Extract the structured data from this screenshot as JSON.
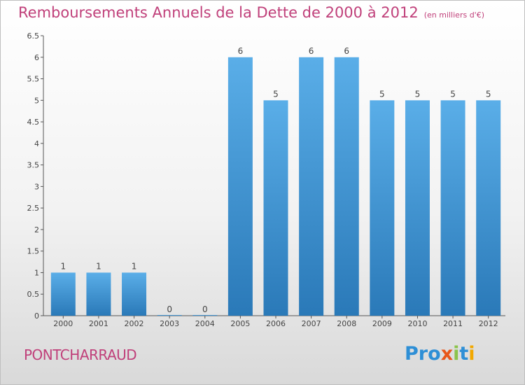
{
  "title": "Remboursements Annuels de la Dette de 2000 à 2012",
  "unit": "(en milliers d'€)",
  "commune": "PONTCHARRAUD",
  "logo": {
    "text": "Proxiti",
    "letters": [
      "P",
      "r",
      "o",
      "x",
      "i",
      "t",
      "i"
    ],
    "colors": [
      "#2e8fd6",
      "#2e8fd6",
      "#2e8fd6",
      "#e8561a",
      "#8bc34a",
      "#2e8fd6",
      "#f2a800"
    ]
  },
  "colors": {
    "bar_light": "#5aaee8",
    "bar_dark": "#2a79b8",
    "title": "#c0407a"
  },
  "chart_data": {
    "type": "bar",
    "categories": [
      "2000",
      "2001",
      "2002",
      "2003",
      "2004",
      "2005",
      "2006",
      "2007",
      "2008",
      "2009",
      "2010",
      "2011",
      "2012"
    ],
    "values": [
      1,
      1,
      1,
      0,
      0,
      6,
      5,
      6,
      6,
      5,
      5,
      5,
      5
    ],
    "data_labels": [
      "1",
      "1",
      "1",
      "0",
      "0",
      "6",
      "5",
      "6",
      "6",
      "5",
      "5",
      "5",
      "5"
    ],
    "yticks": [
      "0",
      "0.5",
      "1",
      "1.5",
      "2",
      "2.5",
      "3",
      "3.5",
      "4",
      "4.5",
      "5",
      "5.5",
      "6",
      "6.5"
    ],
    "ylim": [
      0,
      6.5
    ],
    "grid": false
  }
}
